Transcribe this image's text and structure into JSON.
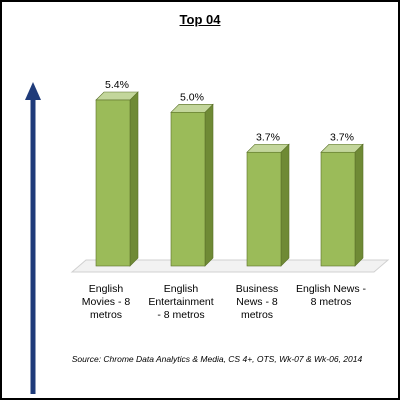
{
  "chart_data": {
    "type": "bar",
    "title": "Top 04",
    "categories": [
      "English Movies - 8 metros",
      "English Entertainment - 8 metros",
      "Business News - 8 metros",
      "English News - 8 metros"
    ],
    "category_lines": [
      [
        "English",
        "Movies - 8",
        "metros"
      ],
      [
        "English",
        "Entertainment",
        "- 8 metros"
      ],
      [
        "Business",
        "News - 8",
        "metros"
      ],
      [
        "English News -",
        "8 metros"
      ]
    ],
    "values": [
      5.4,
      5.0,
      3.7,
      3.7
    ],
    "value_labels": [
      "5.4%",
      "5.0%",
      "3.7%",
      "3.7%"
    ],
    "ylim": [
      0,
      5.4
    ],
    "grid": false,
    "legend": "none",
    "bar_color": "#9bbb59",
    "bar_side_color": "#6f8a35",
    "bar_top_color": "#c3d69b",
    "arrow_color": "#1f3b7a"
  },
  "source": "Source: Chrome Data Analytics & Media, CS 4+, OTS, Wk-07 & Wk-06, 2014"
}
